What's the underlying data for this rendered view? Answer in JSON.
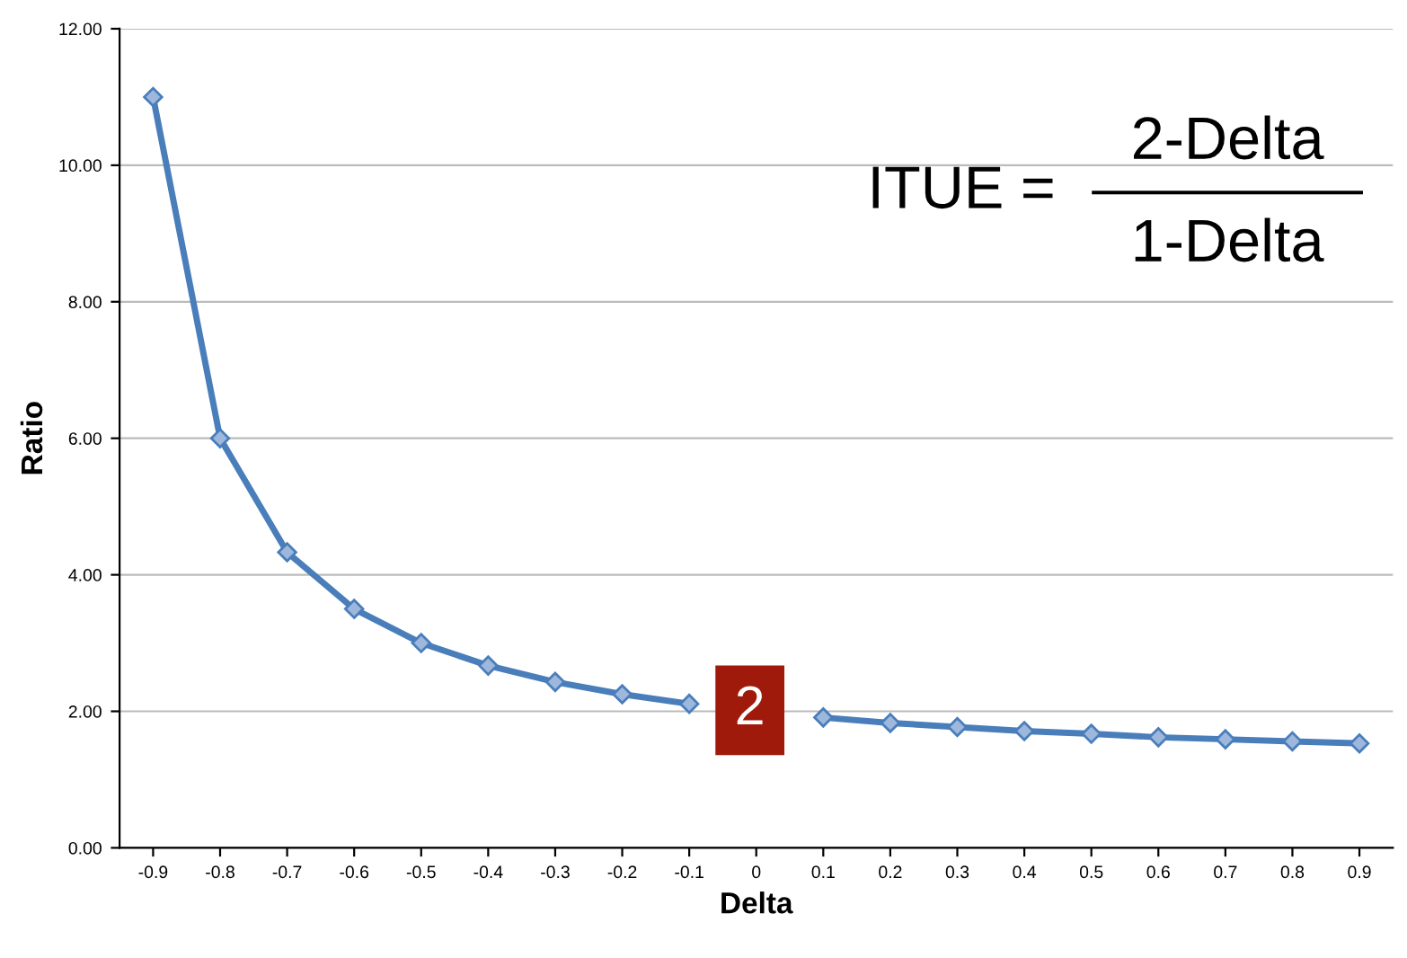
{
  "chart_data": {
    "type": "line",
    "xlabel": "Delta",
    "ylabel": "Ratio",
    "categories": [
      "-0.9",
      "-0.8",
      "-0.7",
      "-0.6",
      "-0.5",
      "-0.4",
      "-0.3",
      "-0.2",
      "-0.1",
      "0",
      "0.1",
      "0.2",
      "0.3",
      "0.4",
      "0.5",
      "0.6",
      "0.7",
      "0.8",
      "0.9"
    ],
    "series": [
      {
        "color": "#4a7ebb",
        "values": [
          11.0,
          6.0,
          4.33,
          3.5,
          3.0,
          2.67,
          2.43,
          2.25,
          2.11,
          null,
          1.91,
          1.83,
          1.77,
          1.71,
          1.67,
          1.62,
          1.59,
          1.56,
          1.53
        ]
      }
    ],
    "ylim": [
      0,
      12
    ],
    "yticks": [
      {
        "value": 0,
        "label": "0.00"
      },
      {
        "value": 2,
        "label": "2.00"
      },
      {
        "value": 4,
        "label": "4.00"
      },
      {
        "value": 6,
        "label": "6.00"
      },
      {
        "value": 8,
        "label": "8.00"
      },
      {
        "value": 10,
        "label": "10.00"
      },
      {
        "value": 12,
        "label": "12.00"
      }
    ],
    "grid": "y",
    "marker": "diamond",
    "line_style": "solid",
    "annotations": [
      "ITUE =",
      "2-Delta",
      "1-Delta",
      "2"
    ]
  }
}
